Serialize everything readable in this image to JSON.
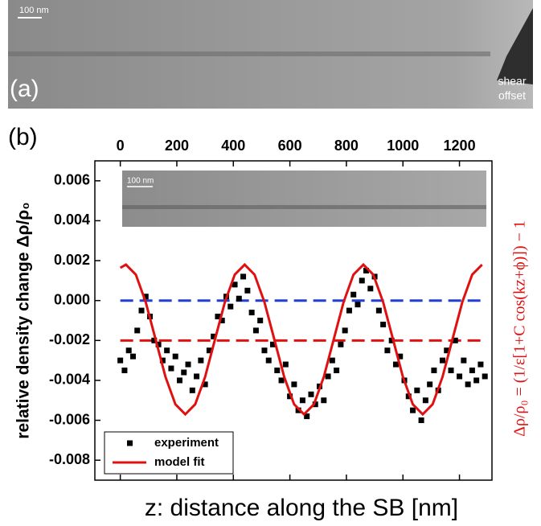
{
  "chart_data": {
    "type": "scatter",
    "panel_a_label": "(a)",
    "panel_b_label": "(b)",
    "scale_bar_label": "100 nm",
    "inset_scale_bar_label": "100 nm",
    "annotation_lines": [
      "shear",
      "offset"
    ],
    "xlabel": "z: distance along the SB [nm]",
    "ylabel": "relative density change Δρ/ρ₀",
    "y2label": "Δρ/ρ₀ = (1/ε[1+C cos(kz+ϕ)]) − 1",
    "xlim": [
      -90,
      1315
    ],
    "xticks": [
      0,
      200,
      400,
      600,
      800,
      1000,
      1200
    ],
    "ylim": [
      -0.009,
      0.007
    ],
    "yticks": [
      -0.008,
      -0.006,
      -0.004,
      -0.002,
      {
        "value": 0,
        "label": "0.000"
      },
      0.002,
      0.004,
      0.006
    ],
    "reference_lines": [
      {
        "value": 0,
        "color": "#1f3fd8"
      },
      {
        "value": -0.002,
        "color": "#e01010"
      }
    ],
    "legend": "lower left",
    "series": [
      {
        "name": "experiment",
        "type": "scatter",
        "color": "#000000",
        "x": [
          0,
          15,
          30,
          45,
          60,
          75,
          90,
          105,
          120,
          135,
          150,
          165,
          180,
          195,
          210,
          225,
          240,
          255,
          270,
          285,
          300,
          315,
          330,
          345,
          360,
          375,
          390,
          405,
          420,
          435,
          450,
          465,
          480,
          495,
          510,
          525,
          540,
          555,
          570,
          585,
          600,
          615,
          630,
          645,
          660,
          675,
          690,
          705,
          720,
          735,
          750,
          765,
          780,
          795,
          810,
          825,
          840,
          855,
          870,
          885,
          900,
          915,
          930,
          945,
          960,
          975,
          990,
          1005,
          1020,
          1035,
          1050,
          1065,
          1080,
          1095,
          1110,
          1125,
          1140,
          1155,
          1170,
          1185,
          1200,
          1215,
          1230,
          1245,
          1260,
          1275,
          1290
        ],
        "values": [
          -0.003,
          -0.0035,
          -0.0025,
          -0.0028,
          -0.0015,
          -0.0005,
          0.0002,
          -0.0008,
          -0.002,
          -0.0022,
          -0.003,
          -0.0025,
          -0.0034,
          -0.0028,
          -0.004,
          -0.0036,
          -0.0032,
          -0.0045,
          -0.0038,
          -0.003,
          -0.0042,
          -0.0025,
          -0.0018,
          -0.0008,
          -0.001,
          0.0002,
          -0.0003,
          0.0008,
          0.0001,
          0.0012,
          0.0005,
          -0.0006,
          -0.0015,
          -0.001,
          -0.0025,
          -0.003,
          -0.0022,
          -0.0035,
          -0.004,
          -0.0032,
          -0.0048,
          -0.0042,
          -0.0055,
          -0.005,
          -0.0058,
          -0.0047,
          -0.0052,
          -0.0043,
          -0.005,
          -0.0038,
          -0.003,
          -0.0035,
          -0.0022,
          -0.0015,
          -0.0005,
          0.0003,
          -0.0002,
          0.001,
          0.0015,
          0.0006,
          0.0012,
          -0.0005,
          -0.0012,
          -0.0025,
          -0.002,
          -0.0032,
          -0.0028,
          -0.004,
          -0.0048,
          -0.0055,
          -0.0045,
          -0.006,
          -0.005,
          -0.0042,
          -0.0035,
          -0.0045,
          -0.003,
          -0.0025,
          -0.0035,
          -0.002,
          -0.0038,
          -0.003,
          -0.0042,
          -0.0035,
          -0.004,
          -0.0032,
          -0.0038
        ]
      },
      {
        "name": "model fit",
        "type": "line",
        "color": "#e01010",
        "x": [
          0,
          20,
          55,
          90,
          125,
          160,
          195,
          230,
          265,
          300,
          335,
          370,
          405,
          440,
          475,
          510,
          545,
          580,
          615,
          650,
          685,
          720,
          755,
          790,
          825,
          860,
          895,
          930,
          965,
          1000,
          1035,
          1070,
          1105,
          1140,
          1175,
          1210,
          1245,
          1280
        ],
        "values": [
          0.00164,
          0.0018,
          0.0013,
          -8e-05,
          -0.00195,
          -0.00383,
          -0.0052,
          -0.0057,
          -0.0052,
          -0.00383,
          -0.00195,
          -8e-05,
          0.0013,
          0.0018,
          0.0013,
          -8e-05,
          -0.00195,
          -0.00383,
          -0.0052,
          -0.0057,
          -0.0052,
          -0.00383,
          -0.00195,
          -8e-05,
          0.0013,
          0.0018,
          0.0013,
          -8e-05,
          -0.00195,
          -0.00383,
          -0.0052,
          -0.0057,
          -0.0052,
          -0.00383,
          -0.00195,
          -8e-05,
          0.0013,
          0.0018
        ]
      }
    ]
  }
}
